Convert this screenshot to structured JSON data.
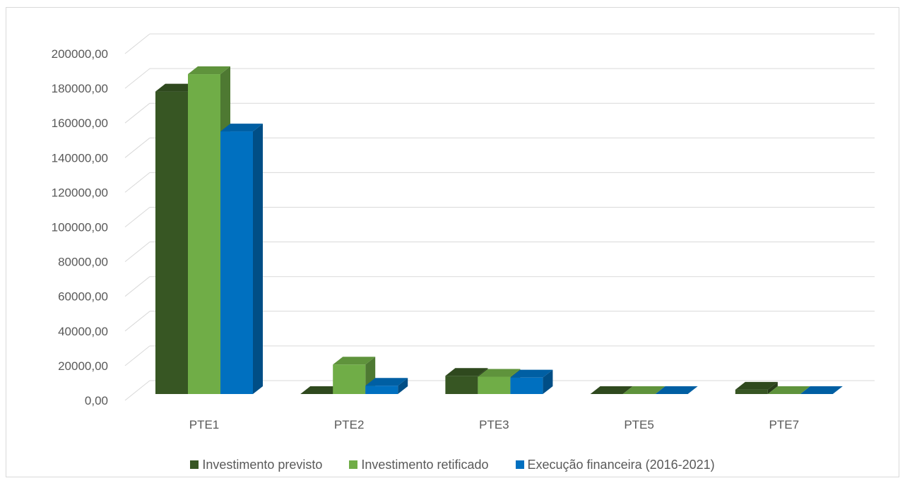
{
  "chart_data": {
    "type": "bar",
    "style": "3d-clustered-column",
    "categories": [
      "PTE1",
      "PTE2",
      "PTE3",
      "PTE5",
      "PTE7"
    ],
    "series": [
      {
        "name": "Investimento previsto",
        "color": "#375623",
        "values": [
          174500,
          0,
          10500,
          0,
          2500
        ]
      },
      {
        "name": "Investimento retificado",
        "color": "#70ad47",
        "values": [
          184500,
          17000,
          10000,
          0,
          0
        ]
      },
      {
        "name": "Execução financeira (2016-2021)",
        "color": "#0070c0",
        "values": [
          151500,
          4800,
          9500,
          0,
          0
        ]
      }
    ],
    "yticks": [
      "0,00",
      "20000,00",
      "40000,00",
      "60000,00",
      "80000,00",
      "100000,00",
      "120000,00",
      "140000,00",
      "160000,00",
      "180000,00",
      "200000,00"
    ],
    "ylim": [
      0,
      200000
    ],
    "grid": true,
    "legend_position": "bottom"
  }
}
